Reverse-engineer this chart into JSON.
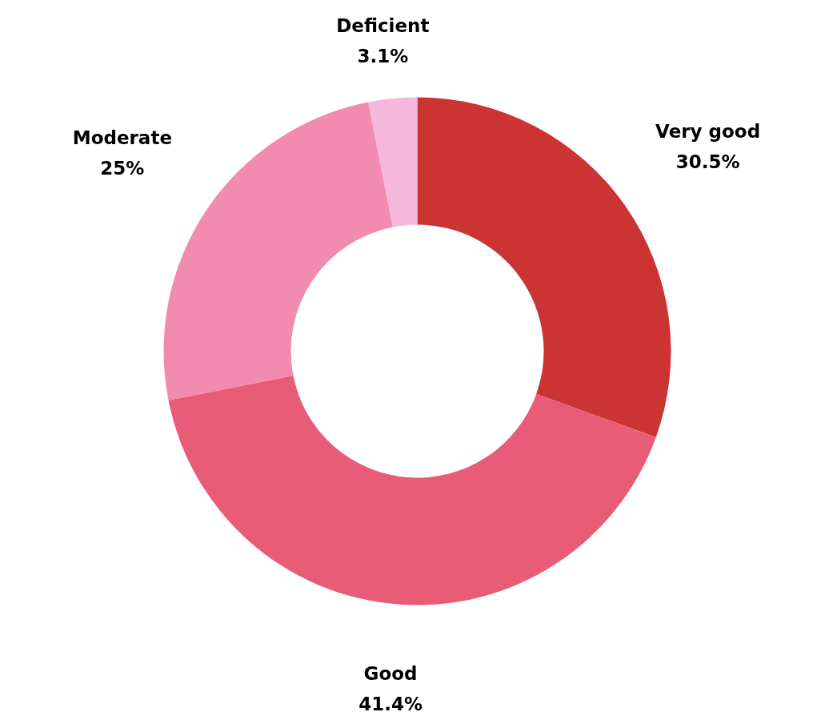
{
  "chart_data": {
    "type": "donut",
    "categories": [
      "Very good",
      "Good",
      "Moderate",
      "Deficient"
    ],
    "values": [
      30.5,
      41.4,
      25,
      3.1
    ],
    "colors": [
      "#cc3333",
      "#e85c78",
      "#f18bb0",
      "#f5b8dc"
    ],
    "value_labels": [
      "30.5%",
      "41.4%",
      "25%",
      "3.1%"
    ],
    "legend": false
  }
}
